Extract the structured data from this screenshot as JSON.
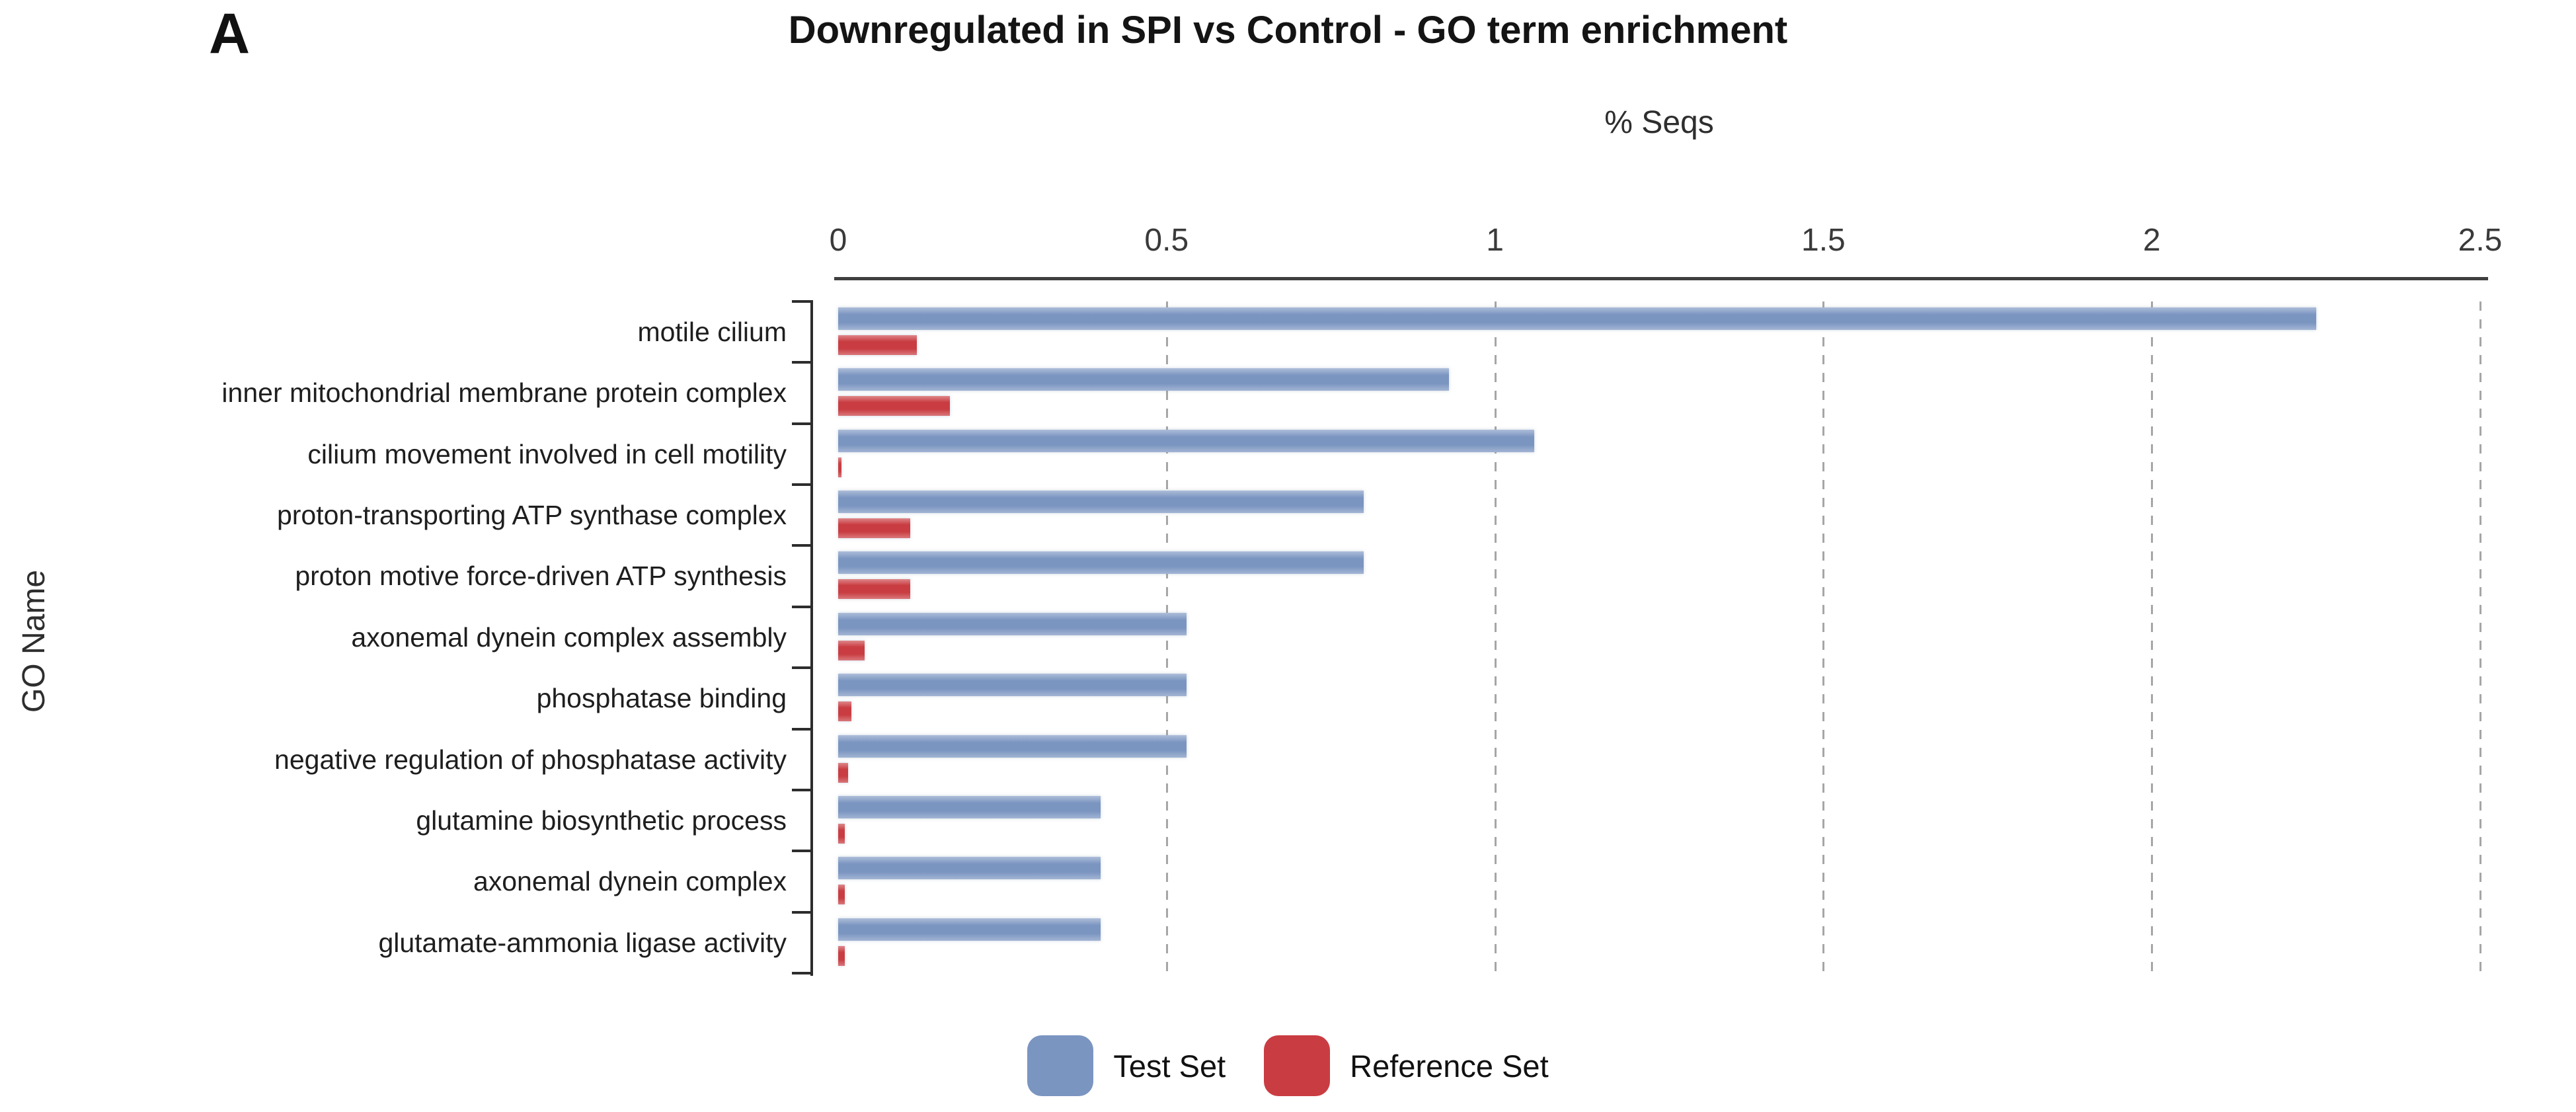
{
  "panel_label": "A",
  "chart_data": {
    "type": "bar",
    "orientation": "horizontal",
    "title": "Downregulated in SPI vs Control - GO term enrichment",
    "xlabel": "% Seqs",
    "ylabel": "GO Name",
    "xlim": [
      0,
      2.5
    ],
    "xticks": [
      "0",
      "0.5",
      "1",
      "1.5",
      "2",
      "2.5"
    ],
    "grid": "dashed-vertical-gridlines",
    "legend_position": "bottom-center",
    "categories": [
      "motile cilium",
      "inner mitochondrial membrane protein complex",
      "cilium movement involved in cell motility",
      "proton-transporting ATP synthase complex",
      "proton motive force-driven ATP synthesis",
      "axonemal dynein complex assembly",
      "phosphatase binding",
      "negative regulation of phosphatase activity",
      "glutamine biosynthetic process",
      "axonemal dynein complex",
      "glutamate-ammonia ligase activity"
    ],
    "series": [
      {
        "name": "Test Set",
        "color": "#7b95c1",
        "values": [
          2.25,
          0.93,
          1.06,
          0.8,
          0.8,
          0.53,
          0.53,
          0.53,
          0.4,
          0.4,
          0.4
        ]
      },
      {
        "name": "Reference Set",
        "color": "#c93d42",
        "values": [
          0.12,
          0.17,
          0.005,
          0.11,
          0.11,
          0.04,
          0.02,
          0.015,
          0.01,
          0.01,
          0.01
        ]
      }
    ]
  }
}
